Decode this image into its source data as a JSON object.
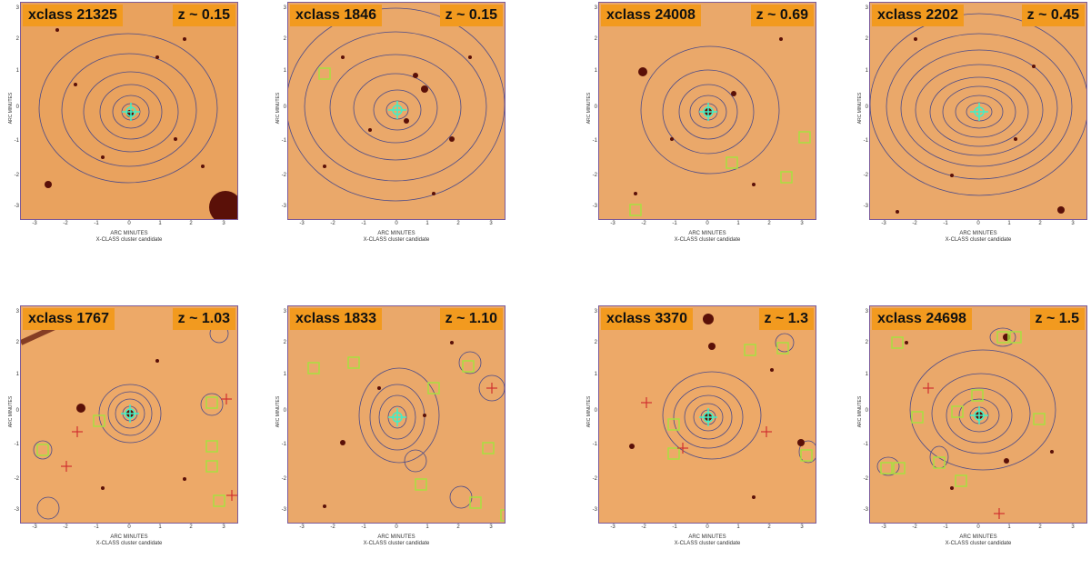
{
  "axis": {
    "y_label": "ARC  MINUTES",
    "x_label": "ARC  MINUTES",
    "caption": "X-CLASS cluster candidate",
    "x_ticks": [
      "-3",
      "-2",
      "-1",
      "0",
      "1",
      "2",
      "3"
    ],
    "y_ticks": [
      "3",
      "2",
      "1",
      "0",
      "-1",
      "-2",
      "-3"
    ]
  },
  "panels": [
    {
      "name": "xclass 21325",
      "z": "z ~ 0.15"
    },
    {
      "name": "xclass 1846",
      "z": "z ~ 0.15"
    },
    {
      "name": "xclass 24008",
      "z": "z ~ 0.69"
    },
    {
      "name": "xclass 2202",
      "z": "z ~ 0.45"
    },
    {
      "name": "xclass 1767",
      "z": "z ~ 1.03"
    },
    {
      "name": "xclass 1833",
      "z": "z ~ 1.10"
    },
    {
      "name": "xclass 3370",
      "z": "z ~ 1.3"
    },
    {
      "name": "xclass 24698",
      "z": "z ~ 1.5"
    }
  ],
  "colors": {
    "background": "#e8a765",
    "label_bg": "#f29a1f",
    "contour": "#4a4a8a",
    "marker": "#3ff0c8",
    "square": "#a8e040",
    "cross": "#d03030"
  }
}
